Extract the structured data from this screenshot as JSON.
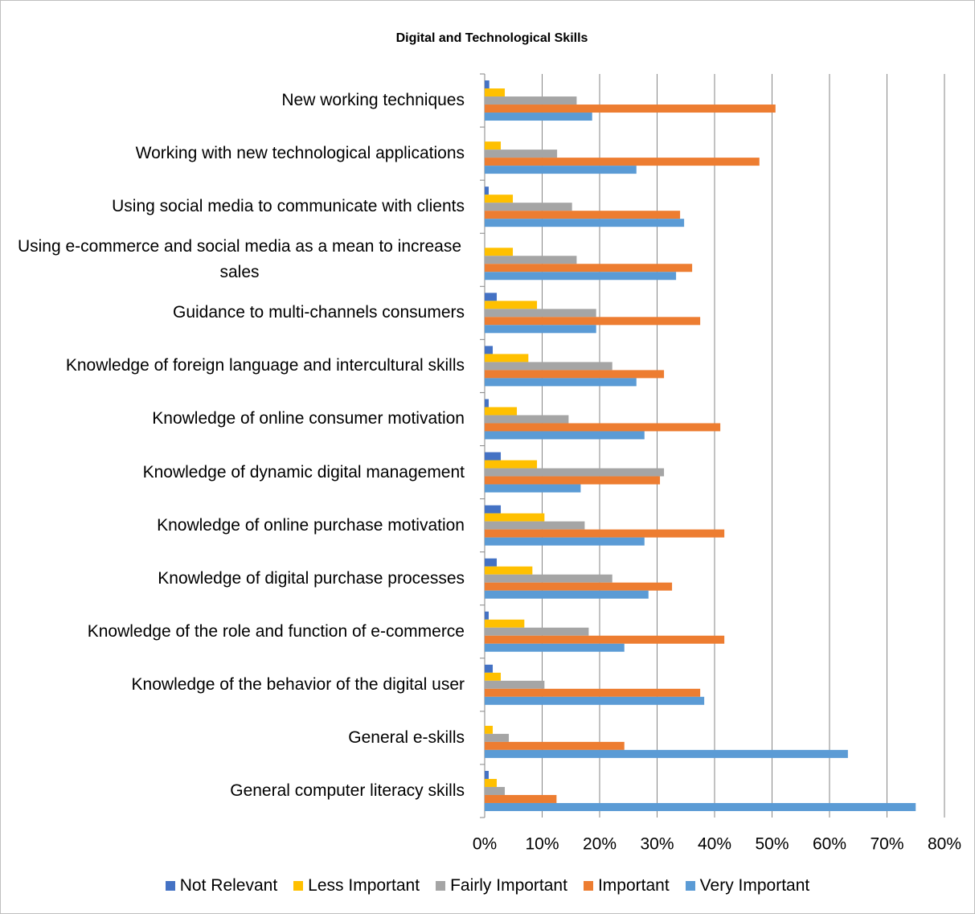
{
  "chart_data": {
    "type": "bar",
    "orientation": "horizontal",
    "title": "Digital and Technological Skills",
    "categories": [
      "New working techniques",
      "Working with new technological applications",
      "Using social media to communicate with clients",
      "Using e-commerce and social media as a mean to increase sales",
      "Guidance to multi-channels consumers",
      "Knowledge of foreign language and intercultural skills",
      "Knowledge of online consumer motivation",
      "Knowledge of dynamic digital management",
      "Knowledge of online purchase motivation",
      "Knowledge of digital purchase processes",
      "Knowledge of the role and function of e-commerce",
      "Knowledge of the behavior of the digital user",
      "General e-skills",
      "General computer literacy skills"
    ],
    "series": [
      {
        "name": "Not Relevant",
        "color": "#4472c4",
        "values": [
          0.8,
          0,
          0.7,
          0,
          2.1,
          1.4,
          0.7,
          2.8,
          2.8,
          2.1,
          0.7,
          1.4,
          0,
          0.7
        ]
      },
      {
        "name": "Less Important",
        "color": "#ffc000",
        "values": [
          3.5,
          2.8,
          4.9,
          4.9,
          9.1,
          7.6,
          5.6,
          9.1,
          10.4,
          8.3,
          6.9,
          2.8,
          1.4,
          2.1
        ]
      },
      {
        "name": "Fairly Important",
        "color": "#a5a5a5",
        "values": [
          16,
          12.6,
          15.2,
          16,
          19.4,
          22.2,
          14.6,
          31.2,
          17.4,
          22.2,
          18.1,
          10.4,
          4.2,
          3.5
        ]
      },
      {
        "name": "Important",
        "color": "#ed7d31",
        "values": [
          50.6,
          47.8,
          34,
          36.1,
          37.5,
          31.2,
          41,
          30.5,
          41.7,
          32.6,
          41.7,
          37.5,
          24.3,
          12.5
        ]
      },
      {
        "name": "Very Important",
        "color": "#5b9bd5",
        "values": [
          18.7,
          26.4,
          34.7,
          33.3,
          19.4,
          26.4,
          27.8,
          16.7,
          27.8,
          28.5,
          24.3,
          38.2,
          63.2,
          75
        ]
      }
    ],
    "xlim": [
      0,
      80
    ],
    "xticks": [
      {
        "value": 0,
        "label": "0%"
      },
      {
        "value": 10,
        "label": "10%"
      },
      {
        "value": 20,
        "label": "20%"
      },
      {
        "value": 30,
        "label": "30%"
      },
      {
        "value": 40,
        "label": "40%"
      },
      {
        "value": 50,
        "label": "50%"
      },
      {
        "value": 60,
        "label": "60%"
      },
      {
        "value": 70,
        "label": "70%"
      },
      {
        "value": 80,
        "label": "80%"
      }
    ],
    "grid": true,
    "legend": "bottom"
  }
}
